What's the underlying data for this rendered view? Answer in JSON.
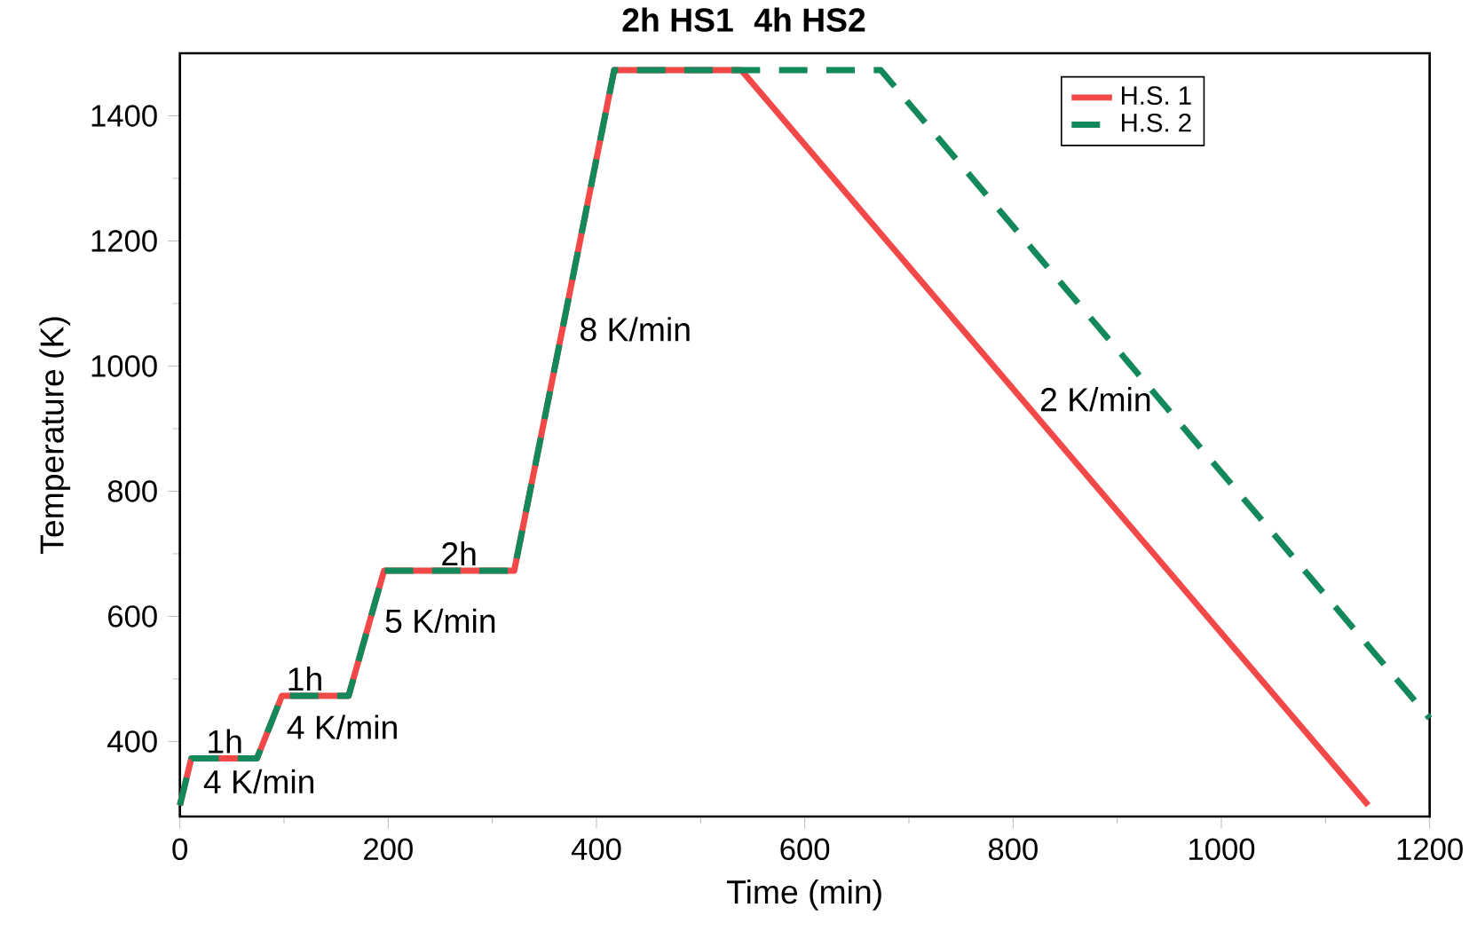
{
  "chart_data": {
    "type": "line",
    "xlabel": "Time (min)",
    "ylabel": "Temperature (K)",
    "xlim": [
      0,
      1200
    ],
    "ylim": [
      280,
      1500
    ],
    "xticks": [
      0,
      200,
      400,
      600,
      800,
      1000,
      1200
    ],
    "yticks": [
      400,
      600,
      800,
      1000,
      1200,
      1400
    ],
    "legend": "top right",
    "grid": false,
    "series": [
      {
        "name": "H.S. 1",
        "color": "#f24848",
        "line_style": "solid",
        "x": [
          0,
          11,
          74,
          98,
          162,
          196,
          321,
          417,
          539,
          1141
        ],
        "values": [
          298,
          373,
          373,
          473,
          473,
          673,
          673,
          1473,
          1473,
          298
        ]
      },
      {
        "name": "H.S. 2",
        "color": "#13885a",
        "line_style": "dashed",
        "x": [
          0,
          11,
          74,
          98,
          162,
          196,
          321,
          417,
          673,
          1200
        ],
        "values": [
          298,
          373,
          373,
          473,
          473,
          673,
          673,
          1473,
          1473,
          437
        ]
      }
    ],
    "annotations": [
      {
        "text": "1h",
        "x": 43,
        "y": 373
      },
      {
        "text": "4 K/min",
        "x": 6,
        "y": 336
      },
      {
        "text": "1h",
        "x": 120,
        "y": 473
      },
      {
        "text": "4 K/min",
        "x": 86,
        "y": 423
      },
      {
        "text": "5 K/min",
        "x": 180,
        "y": 593
      },
      {
        "text": "2h",
        "x": 268,
        "y": 673
      },
      {
        "text": "8 K/min",
        "x": 367,
        "y": 1059
      },
      {
        "text": "2 K/min",
        "x": 809,
        "y": 947
      },
      {
        "text": "2h HS1",
        "x": 478,
        "y": 1473
      },
      {
        "text": "4h HS2",
        "x": 605,
        "y": 1473
      }
    ]
  }
}
